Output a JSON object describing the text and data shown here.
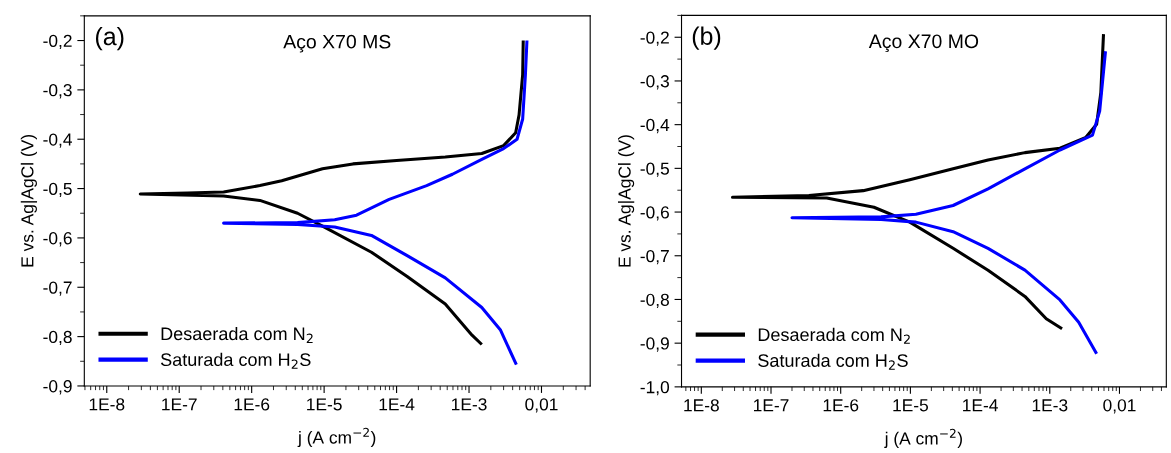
{
  "chart_data": [
    {
      "type": "line",
      "title": "Aço X70 MS",
      "annotations": [
        "(a)"
      ],
      "xlabel": "j (A cm$^{−2}$)",
      "ylabel": "E vs. Ag|AgCl (V)",
      "log": "x",
      "legend": "bottom left",
      "grid": false,
      "xlim": [
        4.9e-09,
        0.047
      ],
      "ylim": [
        -0.9,
        -0.15
      ],
      "xticks": [
        {
          "value": 1e-08,
          "label": "1E-8"
        },
        {
          "value": 1e-07,
          "label": "1E-7"
        },
        {
          "value": 1e-06,
          "label": "1E-6"
        },
        {
          "value": 1e-05,
          "label": "1E-5"
        },
        {
          "value": 0.0001,
          "label": "1E-4"
        },
        {
          "value": 0.001,
          "label": "1E-3"
        },
        {
          "value": 0.01,
          "label": "0,01"
        }
      ],
      "yticks": [
        {
          "value": -0.9,
          "label": "-0,9"
        },
        {
          "value": -0.8,
          "label": "-0,8"
        },
        {
          "value": -0.7,
          "label": "-0,7"
        },
        {
          "value": -0.6,
          "label": "-0,6"
        },
        {
          "value": -0.5,
          "label": "-0,5"
        },
        {
          "value": -0.4,
          "label": "-0,4"
        },
        {
          "value": -0.3,
          "label": "-0,3"
        },
        {
          "value": -0.2,
          "label": "-0,2"
        }
      ],
      "series": [
        {
          "name": "Desaerada com N$_{2}$",
          "color": "#000000",
          "x": [
            0.0015,
            0.0011,
            0.00047,
            0.00014,
            4.5e-05,
            9.5e-06,
            4.3e-06,
            1.3e-06,
            4.1e-07,
            2.9e-08,
            1.3e-07,
            4.1e-07,
            1.3e-06,
            2.6e-06,
            9.5e-06,
            2.5e-05,
            0.0001,
            0.00047,
            0.0015,
            0.003,
            0.0044,
            0.0049,
            0.0055,
            0.0056
          ],
          "values": [
            -0.816,
            -0.797,
            -0.734,
            -0.678,
            -0.629,
            -0.576,
            -0.55,
            -0.524,
            -0.515,
            -0.511,
            -0.509,
            -0.507,
            -0.494,
            -0.484,
            -0.46,
            -0.45,
            -0.443,
            -0.436,
            -0.429,
            -0.413,
            -0.387,
            -0.351,
            -0.269,
            -0.2
          ]
        },
        {
          "name": "Saturada com H$_{2}$S",
          "color": "#0000ff",
          "x": [
            0.0045,
            0.0027,
            0.0015,
            0.00047,
            0.00014,
            4.5e-05,
            1.4e-05,
            4.3e-06,
            4.1e-07,
            4.3e-06,
            1.4e-05,
            2.8e-05,
            7.9e-05,
            0.00026,
            0.00059,
            0.0015,
            0.003,
            0.0046,
            0.0055,
            0.006,
            0.0063
          ],
          "values": [
            -0.857,
            -0.786,
            -0.741,
            -0.681,
            -0.636,
            -0.595,
            -0.578,
            -0.573,
            -0.57,
            -0.569,
            -0.563,
            -0.554,
            -0.522,
            -0.494,
            -0.471,
            -0.441,
            -0.419,
            -0.4,
            -0.359,
            -0.269,
            -0.2
          ]
        }
      ]
    },
    {
      "type": "line",
      "title": "Aço X70 MO",
      "annotations": [
        "(b)"
      ],
      "xlabel": "j (A cm$^{−2}$)",
      "ylabel": "E vs. Ag|AgCl (V)",
      "log": "x",
      "legend": "bottom left",
      "grid": false,
      "xlim": [
        5.2e-09,
        0.047
      ],
      "ylim": [
        -1.0,
        -0.15
      ],
      "xticks": [
        {
          "value": 1e-08,
          "label": "1E-8"
        },
        {
          "value": 1e-07,
          "label": "1E-7"
        },
        {
          "value": 1e-06,
          "label": "1E-6"
        },
        {
          "value": 1e-05,
          "label": "1E-5"
        },
        {
          "value": 0.0001,
          "label": "1E-4"
        },
        {
          "value": 0.001,
          "label": "1E-3"
        },
        {
          "value": 0.01,
          "label": "0,01"
        }
      ],
      "yticks": [
        {
          "value": -1.0,
          "label": "-1,0"
        },
        {
          "value": -0.9,
          "label": "-0,9"
        },
        {
          "value": -0.8,
          "label": "-0,8"
        },
        {
          "value": -0.7,
          "label": "-0,7"
        },
        {
          "value": -0.6,
          "label": "-0,6"
        },
        {
          "value": -0.5,
          "label": "-0,5"
        },
        {
          "value": -0.4,
          "label": "-0,4"
        },
        {
          "value": -0.3,
          "label": "-0,3"
        },
        {
          "value": -0.2,
          "label": "-0,2"
        }
      ],
      "series": [
        {
          "name": "Desaerada com N$_{2}$",
          "color": "#000000",
          "x": [
            0.0015,
            0.00089,
            0.00044,
            0.00013,
            4.1e-05,
            9.8e-06,
            3e-06,
            6.3e-07,
            2.8e-08,
            3.5e-07,
            2.1e-06,
            9.8e-06,
            4.1e-05,
            0.00013,
            0.00044,
            0.0014,
            0.0033,
            0.0047,
            0.0054,
            0.0059
          ],
          "values": [
            -0.867,
            -0.844,
            -0.793,
            -0.733,
            -0.683,
            -0.623,
            -0.589,
            -0.568,
            -0.566,
            -0.562,
            -0.551,
            -0.526,
            -0.501,
            -0.481,
            -0.464,
            -0.454,
            -0.429,
            -0.399,
            -0.327,
            -0.193
          ]
        },
        {
          "name": "Saturada com H$_{2}$S",
          "color": "#0000ff",
          "x": [
            0.0047,
            0.0026,
            0.0014,
            0.00044,
            0.00013,
            4.1e-05,
            1.2e-05,
            3.8e-06,
            2e-07,
            3.8e-06,
            1.2e-05,
            4.1e-05,
            0.00013,
            0.00044,
            0.0014,
            0.0041,
            0.0052,
            0.0063
          ],
          "values": [
            -0.924,
            -0.852,
            -0.801,
            -0.733,
            -0.683,
            -0.645,
            -0.623,
            -0.617,
            -0.613,
            -0.611,
            -0.605,
            -0.585,
            -0.547,
            -0.501,
            -0.458,
            -0.424,
            -0.369,
            -0.232
          ]
        }
      ]
    }
  ]
}
